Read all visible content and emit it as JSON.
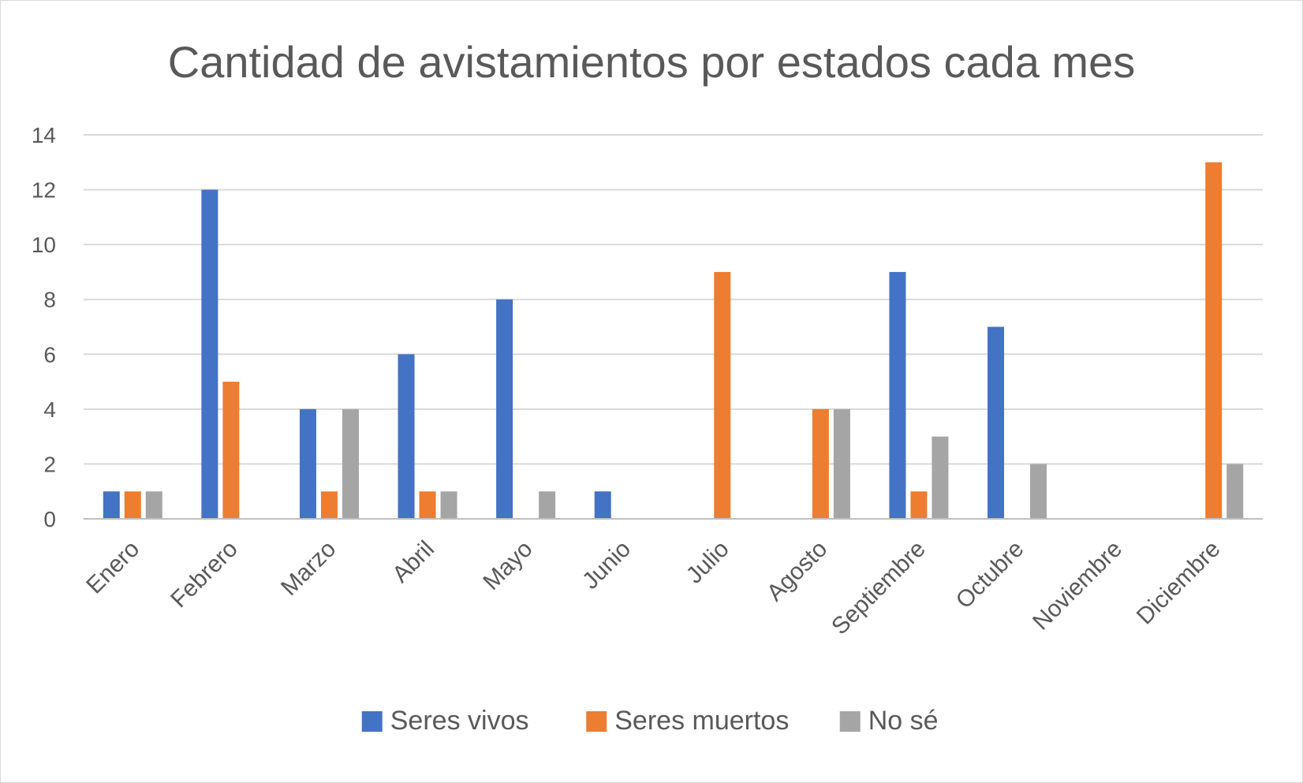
{
  "chart_data": {
    "type": "bar",
    "title": "Cantidad de avistamientos por estados cada mes",
    "xlabel": "",
    "ylabel": "",
    "ylim": [
      0,
      14
    ],
    "yticks": [
      "0",
      "2",
      "4",
      "6",
      "8",
      "10",
      "12",
      "14"
    ],
    "grid": true,
    "legend_position": "bottom",
    "categories": [
      "Enero",
      "Febrero",
      "Marzo",
      "Abril",
      "Mayo",
      "Junio",
      "Julio",
      "Agosto",
      "Septiembre",
      "Octubre",
      "Noviembre",
      "Diciembre"
    ],
    "series": [
      {
        "name": "Seres vivos",
        "color": "#4472c4",
        "values": [
          1,
          12,
          4,
          6,
          8,
          1,
          0,
          0,
          9,
          7,
          0,
          0
        ]
      },
      {
        "name": "Seres muertos",
        "color": "#ed7d31",
        "values": [
          1,
          5,
          1,
          1,
          0,
          0,
          9,
          4,
          1,
          0,
          0,
          13
        ]
      },
      {
        "name": "No sé",
        "color": "#a5a5a5",
        "values": [
          1,
          0,
          4,
          1,
          1,
          0,
          0,
          4,
          3,
          2,
          0,
          2
        ]
      }
    ]
  }
}
